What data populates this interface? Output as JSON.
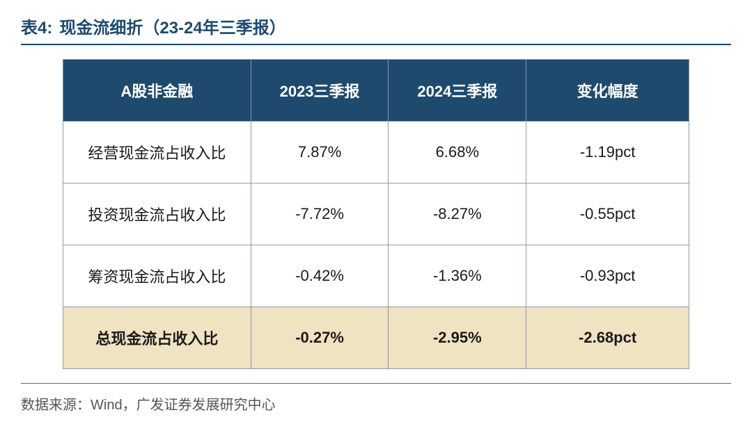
{
  "header": {
    "table_label": "表4:",
    "title": "现金流细折（23-24年三季报）"
  },
  "table": {
    "columns": [
      "A股非金融",
      "2023三季报",
      "2024三季报",
      "变化幅度"
    ],
    "col_widths": [
      "30%",
      "22%",
      "22%",
      "26%"
    ],
    "header_bg": "#1e4a6d",
    "header_fg": "#ffffff",
    "cell_border": "#8a9aa8",
    "highlight_bg": "#efe3c2",
    "rows": [
      {
        "label": "经营现金流占收入比",
        "c2023": "7.87%",
        "c2024": "6.68%",
        "delta": "-1.19pct",
        "highlight": false
      },
      {
        "label": "投资现金流占收入比",
        "c2023": "-7.72%",
        "c2024": "-8.27%",
        "delta": "-0.55pct",
        "highlight": false
      },
      {
        "label": "筹资现金流占收入比",
        "c2023": "-0.42%",
        "c2024": "-1.36%",
        "delta": "-0.93pct",
        "highlight": false
      },
      {
        "label": "总现金流占收入比",
        "c2023": "-0.27%",
        "c2024": "-2.95%",
        "delta": "-2.68pct",
        "highlight": true
      }
    ]
  },
  "source": "数据来源：Wind，广发证券发展研究中心"
}
